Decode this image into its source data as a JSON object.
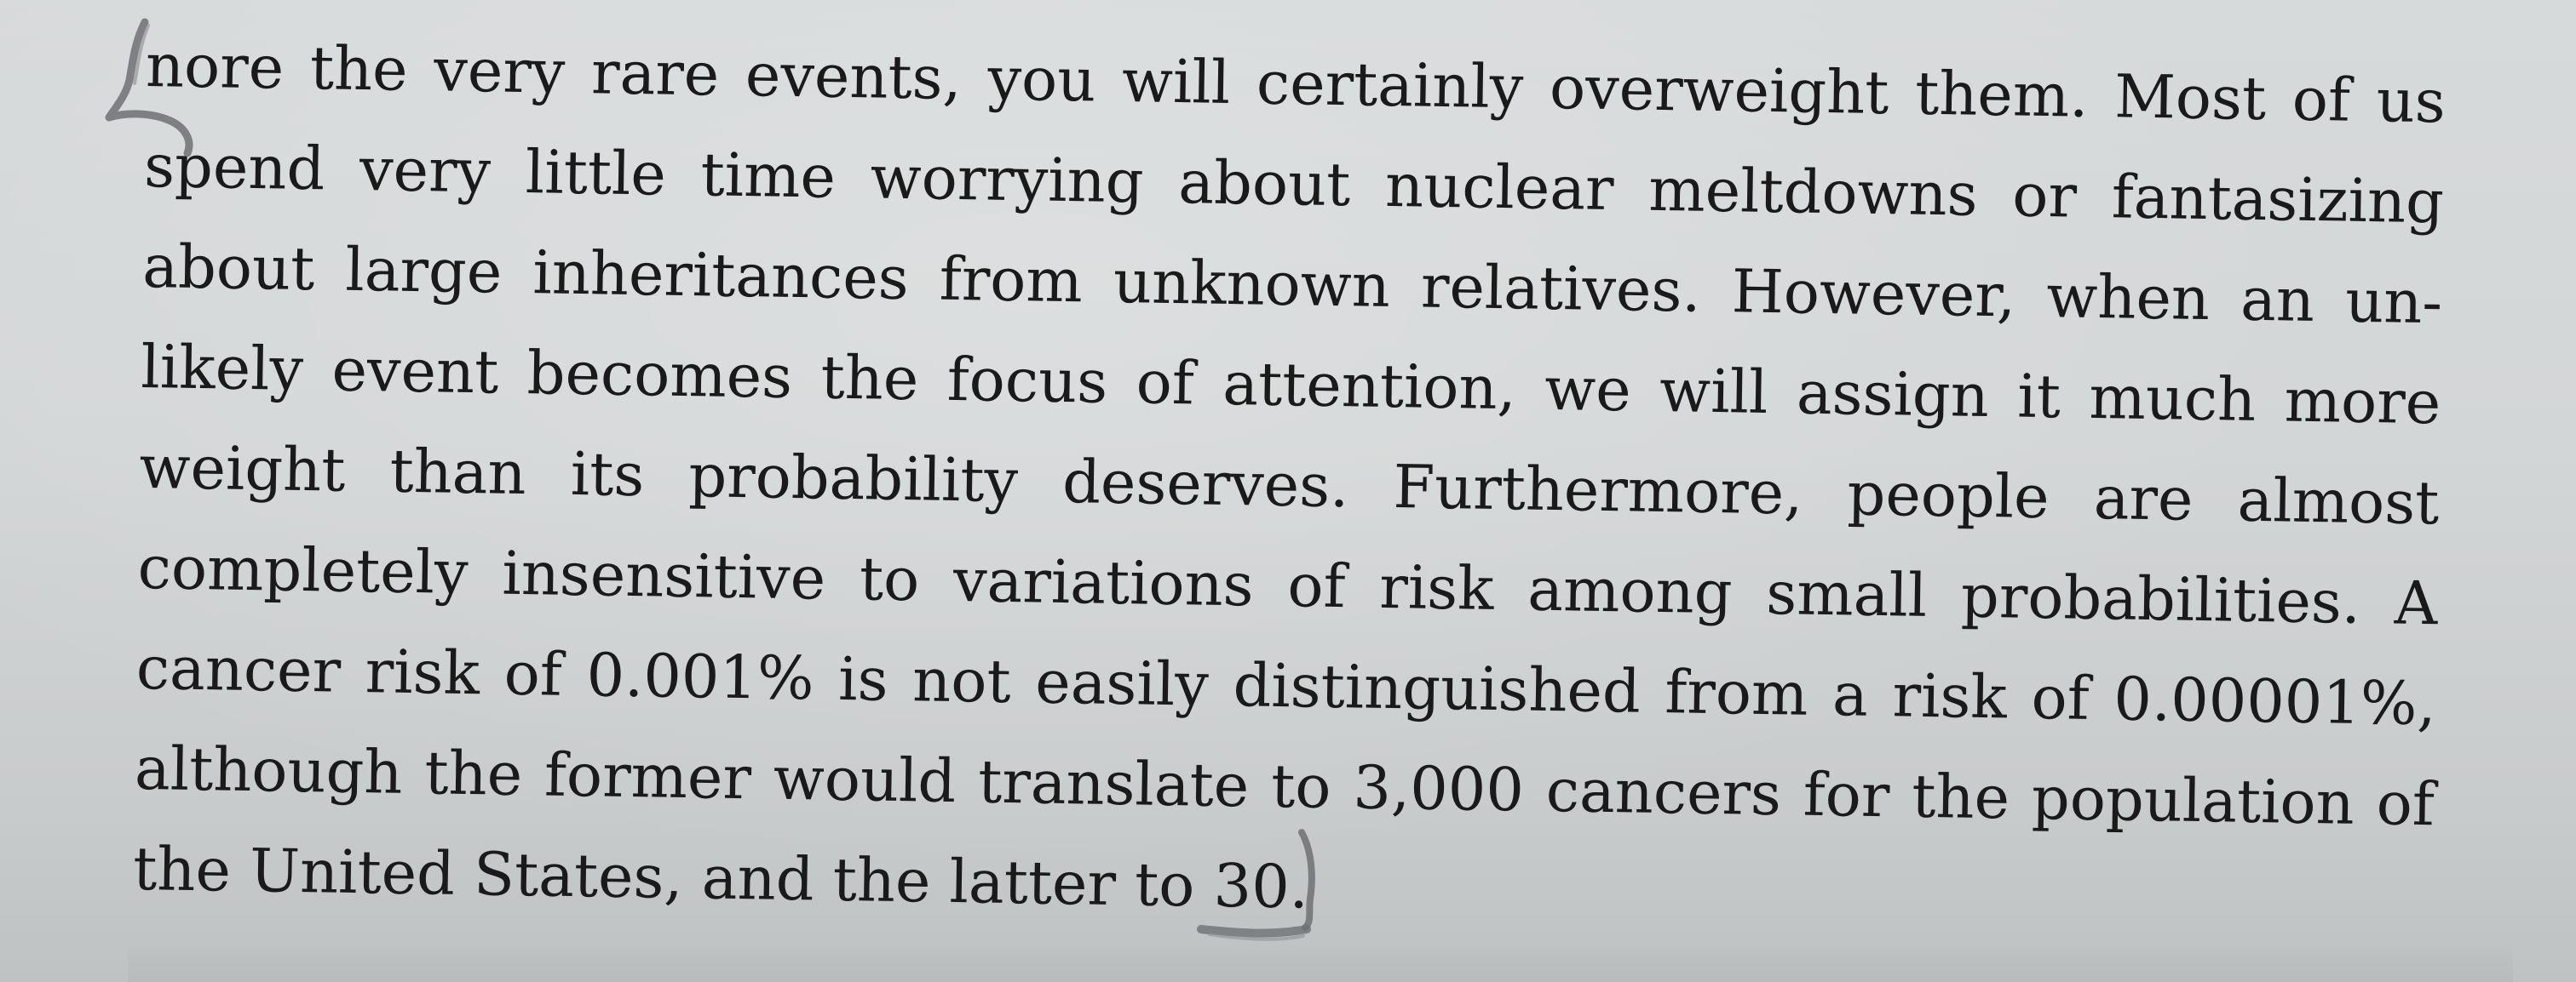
{
  "text": {
    "lines": [
      "nore the very rare events, you will certainly overweight them. Most of us",
      "spend very little time worrying about nuclear meltdowns or fantasizing",
      "about large inheritances from unknown relatives. However, when an un-",
      "likely event becomes the focus of attention, we will assign it much more",
      "weight than its probability deserves. Furthermore, people are almost",
      "completely insensitive to variations of risk among small probabilities. A",
      "cancer risk of 0.001% is not easily distinguished from a risk of 0.00001%,",
      "although the former would translate to 3,000 cancers for the population of",
      "the United States, and the latter to 30."
    ]
  },
  "annotations": {
    "pencil_color": "#6e7073",
    "open_mark_icon": "pencil-bracket-open-icon",
    "close_mark_icon": "pencil-bracket-close-icon"
  }
}
